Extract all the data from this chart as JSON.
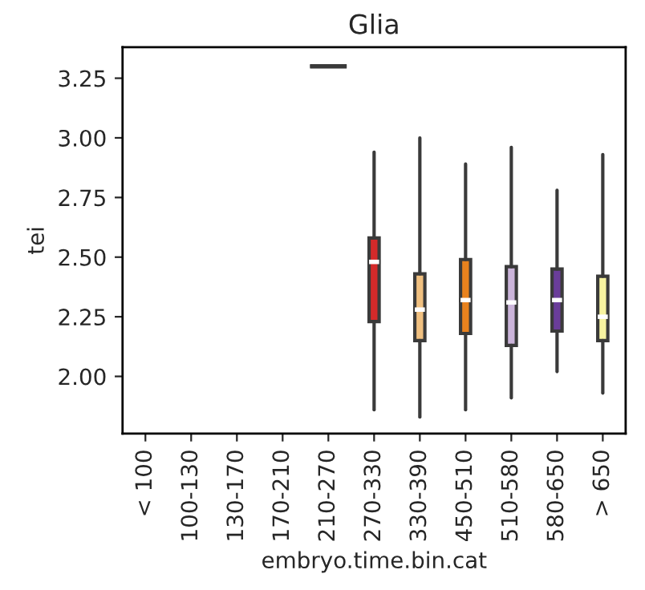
{
  "chart_data": {
    "type": "box",
    "title": "Glia",
    "xlabel": "embryo.time.bin.cat",
    "ylabel": "tei",
    "categories": [
      "< 100",
      "100-130",
      "130-170",
      "170-210",
      "210-270",
      "270-330",
      "330-390",
      "450-510",
      "510-580",
      "580-650",
      "> 650"
    ],
    "boxes": [
      null,
      null,
      null,
      null,
      {
        "low": 3.3,
        "q1": 3.3,
        "median": 3.3,
        "q3": 3.3,
        "high": 3.3
      },
      {
        "low": 1.86,
        "q1": 2.23,
        "median": 2.48,
        "q3": 2.58,
        "high": 2.94
      },
      {
        "low": 1.83,
        "q1": 2.15,
        "median": 2.28,
        "q3": 2.43,
        "high": 3.0
      },
      {
        "low": 1.86,
        "q1": 2.18,
        "median": 2.32,
        "q3": 2.49,
        "high": 2.89
      },
      {
        "low": 1.91,
        "q1": 2.13,
        "median": 2.31,
        "q3": 2.46,
        "high": 2.96
      },
      {
        "low": 2.02,
        "q1": 2.19,
        "median": 2.32,
        "q3": 2.45,
        "high": 2.78
      },
      {
        "low": 1.93,
        "q1": 2.15,
        "median": 2.25,
        "q3": 2.42,
        "high": 2.93
      }
    ],
    "colors": [
      null,
      null,
      null,
      null,
      "#404040",
      "#d42a2a",
      "#f0c080",
      "#e8821e",
      "#cbb4da",
      "#6a3d9a",
      "#f7f3a0"
    ],
    "ylim": [
      1.76,
      3.38
    ],
    "yticks": [
      {
        "value": 2.0,
        "label": "2.00"
      },
      {
        "value": 2.25,
        "label": "2.25"
      },
      {
        "value": 2.5,
        "label": "2.50"
      },
      {
        "value": 2.75,
        "label": "2.75"
      },
      {
        "value": 3.0,
        "label": "3.00"
      },
      {
        "value": 3.25,
        "label": "3.25"
      }
    ],
    "grid": false
  }
}
